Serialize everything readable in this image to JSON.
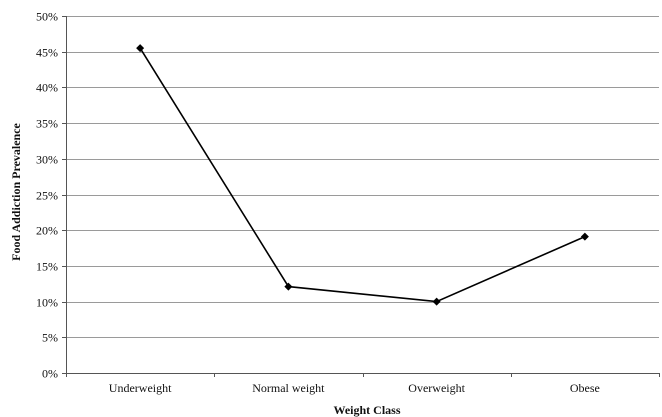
{
  "chart_data": {
    "type": "line",
    "xlabel": "Weight Class",
    "ylabel": "Food Addiction Prevalence",
    "categories": [
      "Underweight",
      "Normal weight",
      "Overweight",
      "Obese"
    ],
    "series": [
      {
        "values": [
          45.5,
          12.1,
          10.0,
          19.1
        ]
      }
    ],
    "ylim": [
      0,
      50
    ],
    "yticks": [
      0,
      5,
      10,
      15,
      20,
      25,
      30,
      35,
      40,
      45,
      50
    ],
    "ytick_labels": [
      "0%",
      "5%",
      "10%",
      "15%",
      "20%",
      "25%",
      "30%",
      "35%",
      "40%",
      "45%",
      "50%"
    ],
    "grid": true,
    "legend": "none",
    "colors": {
      "line": "#000000",
      "grid": "#9a9a9a",
      "axis": "#555555"
    }
  }
}
